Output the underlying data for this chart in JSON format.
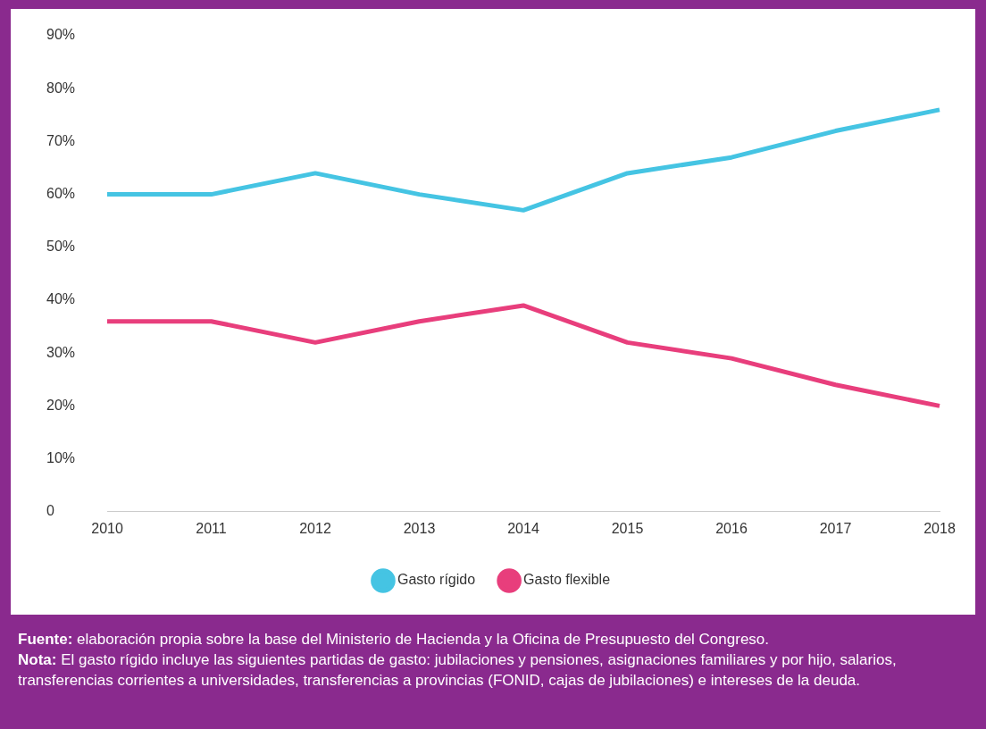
{
  "chart_data": {
    "type": "line",
    "categories": [
      "2010",
      "2011",
      "2012",
      "2013",
      "2014",
      "2015",
      "2016",
      "2017",
      "2018"
    ],
    "series": [
      {
        "name": "Gasto rígido",
        "color": "#45c4e3",
        "values": [
          60,
          60,
          64,
          60,
          57,
          64,
          67,
          72,
          76
        ]
      },
      {
        "name": "Gasto flexible",
        "color": "#e83e7c",
        "values": [
          36,
          36,
          32,
          36,
          39,
          32,
          29,
          24,
          20
        ]
      }
    ],
    "ylim": [
      0,
      90
    ],
    "yticks": [
      {
        "value": 0,
        "label": "0"
      },
      {
        "value": 10,
        "label": "10%"
      },
      {
        "value": 20,
        "label": "20%"
      },
      {
        "value": 30,
        "label": "30%"
      },
      {
        "value": 40,
        "label": "40%"
      },
      {
        "value": 50,
        "label": "50%"
      },
      {
        "value": 60,
        "label": "60%"
      },
      {
        "value": 70,
        "label": "70%"
      },
      {
        "value": 80,
        "label": "80%"
      },
      {
        "value": 90,
        "label": "90%"
      }
    ],
    "grid": false,
    "legend": "bottom",
    "annotations": [
      "Fuente: elaboración propia sobre la base del Ministerio de Hacienda y la Oficina de Presupuesto del Congreso.",
      "Nota: El gasto rígido incluye las siguientes partidas de gasto: jubilaciones y pensiones, asignaciones familiares y por hijo, salarios, transferencias corrientes a universidades, transferencias a provincias (FONID, cajas de jubilaciones) e intereses de la deuda."
    ]
  }
}
